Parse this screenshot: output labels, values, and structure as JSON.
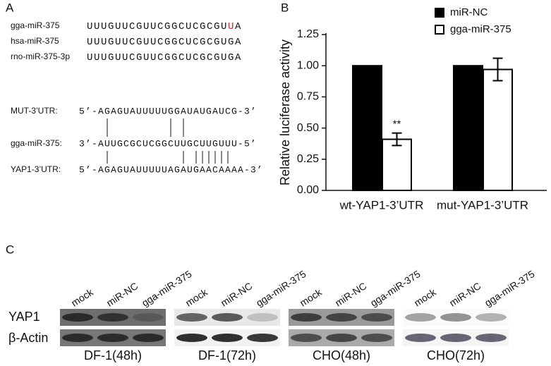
{
  "panel_a": {
    "label": "A",
    "sequences": [
      {
        "name": "gga-miR-375",
        "parts": [
          "UUUGUUCGUUCGGCUCGCGU",
          "U",
          "A"
        ]
      },
      {
        "name": "hsa-miR-375",
        "parts": [
          "UUUGUUCGUUCGGCUCGCGUGA"
        ]
      },
      {
        "name": "rno-miR-375-3p",
        "parts": [
          "UUUGUUCGUUCGGCUCGCGUGA"
        ]
      }
    ],
    "alignment": [
      {
        "name": "MUT-3’UTR:",
        "sequence": "5’-AGAGUAUUUUUGGAUAUGAUCG-3’"
      },
      {
        "name": "gga-miR-375:",
        "sequence": "3’-AUUGCGCUCGGCUUGCUUGUUU-5’"
      },
      {
        "name": "YAP1-3’UTR:",
        "sequence": "5’-AGAGUAUUUUUAGAUGAACAAAA-3’"
      }
    ]
  },
  "chart_data": {
    "type": "bar",
    "panel_label": "B",
    "ylabel": "Relative luciferase activity",
    "categories": [
      "wt-YAP1-3’UTR",
      "mut-YAP1-3’UTR"
    ],
    "series": [
      {
        "name": "miR-NC",
        "color": "#000000",
        "values": [
          1.0,
          1.0
        ]
      },
      {
        "name": "gga-miR-375",
        "color": "#ffffff",
        "values": [
          0.41,
          0.97
        ],
        "errors": [
          0.05,
          0.09
        ]
      }
    ],
    "annotations": [
      {
        "text": "**",
        "series": 1,
        "index": 0
      }
    ],
    "ylim": [
      0,
      1.25
    ],
    "yticks": [
      {
        "value": 0,
        "label": "0.00"
      },
      {
        "value": 0.25,
        "label": "0.25"
      },
      {
        "value": 0.5,
        "label": "0.50"
      },
      {
        "value": 0.75,
        "label": "0.75"
      },
      {
        "value": 1,
        "label": "1.00"
      },
      {
        "value": 1.25,
        "label": "1.25"
      }
    ],
    "legend": "top-right"
  },
  "panel_c": {
    "label": "C",
    "rows": [
      "YAP1",
      "β-Actin"
    ],
    "blots": [
      {
        "name": "DF-1(48h)",
        "lanes": [
          "mock",
          "miR-NC",
          "gga-miR-375"
        ]
      },
      {
        "name": "DF-1(72h)",
        "lanes": [
          "mock",
          "miR-NC",
          "gga-miR-375"
        ]
      },
      {
        "name": "CHO(48h)",
        "lanes": [
          "mock",
          "miR-NC",
          "gga-miR-375"
        ]
      },
      {
        "name": "CHO(72h)",
        "lanes": [
          "mock",
          "miR-NC",
          "gga-miR-375"
        ]
      }
    ]
  }
}
